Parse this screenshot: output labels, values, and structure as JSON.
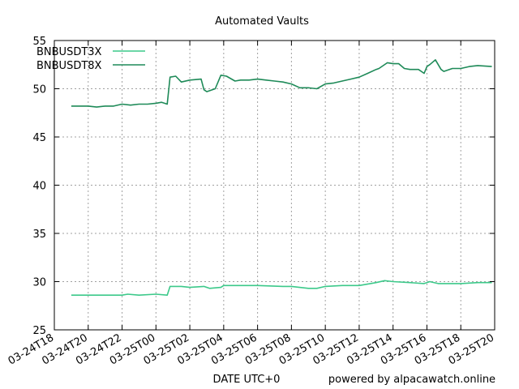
{
  "chart_data": {
    "type": "line",
    "title": "Automated Vaults",
    "xlabel": "DATE UTC+0",
    "ylabel": "",
    "credit": "powered by alpacawatch.online",
    "ylim": [
      25,
      55
    ],
    "yticks": [
      25,
      30,
      35,
      40,
      45,
      50,
      55
    ],
    "xlim": [
      "03-24T18",
      "03-25T20"
    ],
    "xticks": [
      "03-24T18",
      "03-24T20",
      "03-24T22",
      "03-25T00",
      "03-25T02",
      "03-25T04",
      "03-25T06",
      "03-25T08",
      "03-25T10",
      "03-25T12",
      "03-25T14",
      "03-25T16",
      "03-25T18",
      "03-25T20"
    ],
    "grid": true,
    "legend_position": "top-left",
    "x_units": "hours on the 03-24T18 .. 03-25T20 date axis",
    "series": [
      {
        "name": "BNBUSDT3X",
        "color": "#3cc98a",
        "x": [
          "03-24T19:00",
          "03-24T20:00",
          "03-24T22:00",
          "03-24T22:20",
          "03-24T23:00",
          "03-25T00:00",
          "03-25T00:40",
          "03-25T00:50",
          "03-25T01:30",
          "03-25T02:00",
          "03-25T02:50",
          "03-25T03:10",
          "03-25T03:50",
          "03-25T04:00",
          "03-25T05:00",
          "03-25T06:00",
          "03-25T07:30",
          "03-25T08:00",
          "03-25T09:00",
          "03-25T09:30",
          "03-25T10:00",
          "03-25T11:00",
          "03-25T12:00",
          "03-25T12:40",
          "03-25T13:00",
          "03-25T13:30",
          "03-25T14:00",
          "03-25T15:00",
          "03-25T15:50",
          "03-25T16:10",
          "03-25T16:40",
          "03-25T17:00",
          "03-25T18:00",
          "03-25T19:00",
          "03-25T19:50"
        ],
        "values": [
          28.6,
          28.6,
          28.6,
          28.7,
          28.6,
          28.7,
          28.6,
          29.5,
          29.5,
          29.4,
          29.5,
          29.3,
          29.4,
          29.6,
          29.6,
          29.6,
          29.5,
          29.5,
          29.3,
          29.3,
          29.5,
          29.6,
          29.6,
          29.8,
          29.9,
          30.1,
          30.0,
          29.9,
          29.8,
          30.0,
          29.8,
          29.8,
          29.8,
          29.9,
          29.9
        ]
      },
      {
        "name": "BNBUSDT8X",
        "color": "#1e8a58",
        "x": [
          "03-24T19:00",
          "03-24T20:00",
          "03-24T20:30",
          "03-24T21:00",
          "03-24T21:30",
          "03-24T22:00",
          "03-24T22:30",
          "03-24T23:00",
          "03-24T23:30",
          "03-25T00:00",
          "03-25T00:20",
          "03-25T00:40",
          "03-25T00:50",
          "03-25T01:10",
          "03-25T01:30",
          "03-25T02:00",
          "03-25T02:40",
          "03-25T02:50",
          "03-25T03:00",
          "03-25T03:30",
          "03-25T03:50",
          "03-25T04:10",
          "03-25T04:40",
          "03-25T05:00",
          "03-25T05:30",
          "03-25T06:00",
          "03-25T06:30",
          "03-25T07:00",
          "03-25T07:30",
          "03-25T08:00",
          "03-25T08:30",
          "03-25T09:00",
          "03-25T09:30",
          "03-25T10:00",
          "03-25T10:30",
          "03-25T11:00",
          "03-25T11:30",
          "03-25T12:00",
          "03-25T12:30",
          "03-25T13:00",
          "03-25T13:10",
          "03-25T13:40",
          "03-25T14:00",
          "03-25T14:20",
          "03-25T14:40",
          "03-25T15:00",
          "03-25T15:30",
          "03-25T15:50",
          "03-25T16:00",
          "03-25T16:10",
          "03-25T16:30",
          "03-25T16:50",
          "03-25T17:00",
          "03-25T17:30",
          "03-25T18:00",
          "03-25T18:30",
          "03-25T19:00",
          "03-25T19:50"
        ],
        "values": [
          48.2,
          48.2,
          48.1,
          48.2,
          48.2,
          48.4,
          48.3,
          48.4,
          48.4,
          48.5,
          48.6,
          48.4,
          51.2,
          51.3,
          50.7,
          50.9,
          51.0,
          49.9,
          49.7,
          50.0,
          51.4,
          51.3,
          50.8,
          50.9,
          50.9,
          51.0,
          50.9,
          50.8,
          50.7,
          50.5,
          50.1,
          50.1,
          50.0,
          50.5,
          50.6,
          50.8,
          51.0,
          51.2,
          51.6,
          52.0,
          52.1,
          52.7,
          52.6,
          52.6,
          52.1,
          52.0,
          52.0,
          51.6,
          52.3,
          52.5,
          53.0,
          52.0,
          51.8,
          52.1,
          52.1,
          52.3,
          52.4,
          52.3
        ]
      }
    ]
  }
}
